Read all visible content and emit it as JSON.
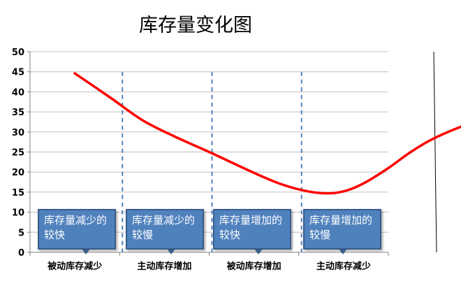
{
  "chart_data": {
    "type": "line",
    "title": "库存量变化图",
    "ylim": [
      0,
      50
    ],
    "yticks": [
      "0",
      "5",
      "10",
      "15",
      "20",
      "25",
      "30",
      "35",
      "40",
      "45",
      "50"
    ],
    "categories": [
      "被动库存减少",
      "主动库存增加",
      "被动库存增加",
      "主动库存减少"
    ],
    "grid": true,
    "series": [
      {
        "color": "#ff0000",
        "points": [
          [
            0.5,
            44.6
          ],
          [
            0.9,
            38.5
          ],
          [
            1.25,
            33
          ],
          [
            1.6,
            29
          ],
          [
            2.0,
            25
          ],
          [
            2.5,
            19.8
          ],
          [
            2.8,
            17
          ],
          [
            3.1,
            15.2
          ],
          [
            3.35,
            14.7
          ],
          [
            3.55,
            15.5
          ],
          [
            3.75,
            17.5
          ],
          [
            4.0,
            21
          ],
          [
            4.25,
            25
          ],
          [
            4.5,
            28.3
          ],
          [
            4.8,
            31.2
          ],
          [
            5.1,
            33.5
          ],
          [
            5.4,
            35.5
          ],
          [
            5.7,
            37.3
          ],
          [
            6.0,
            39.0
          ],
          [
            6.06,
            39.6
          ]
        ]
      }
    ],
    "dividers": [
      1,
      2,
      3
    ],
    "annotations": [
      "库存量减少的较快",
      "库存量减少的较慢",
      "库存量增加的较快",
      "库存量增加的较慢"
    ]
  },
  "colors": {
    "line": "#ff0000",
    "divider": "#4f81bd",
    "callout": "#4f81bd",
    "grid": "#bfbfbf"
  }
}
